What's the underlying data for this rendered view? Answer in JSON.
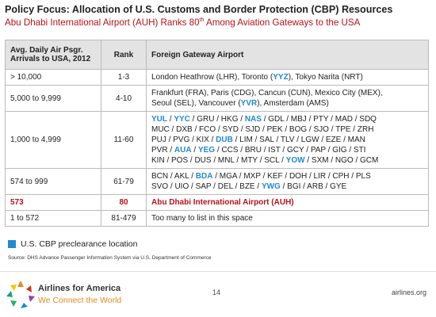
{
  "header": {
    "title": "Policy Focus: Allocation of U.S. Customs and Border Protection (CBP) Resources",
    "subtitle": {
      "lead": "Abu Dhabi International Airport (AUH) Ranks 80",
      "suffix": "th",
      "rest": " Among Aviation Gateways to the USA"
    }
  },
  "table": {
    "columns": [
      "Avg. Daily Air Psgr. Arrivals to USA, 2012",
      "Rank",
      "Foreign Gateway Airport"
    ],
    "rows": [
      {
        "range": "> 10,000",
        "rank": "1-3",
        "highlight": false,
        "airports": [
          {
            "text": "London Heathrow (LHR), Toronto (",
            "preclearance": false
          },
          {
            "text": "YYZ",
            "preclearance": true
          },
          {
            "text": "), Tokyo Narita (NRT)",
            "preclearance": false
          }
        ]
      },
      {
        "range": "5,000 to 9,999",
        "rank": "4-10",
        "highlight": false,
        "airports": [
          {
            "text": "Frankfurt (FRA), Paris (CDG), Cancun (CUN), Mexico City (MEX),\nSeoul (SEL), Vancouver (",
            "preclearance": false
          },
          {
            "text": "YVR",
            "preclearance": true
          },
          {
            "text": "), Amsterdam (AMS)",
            "preclearance": false
          }
        ]
      },
      {
        "range": "1,000 to 4,999",
        "rank": "11-60",
        "highlight": false,
        "airports": [
          {
            "text": "YUL",
            "preclearance": true
          },
          {
            "text": " / ",
            "preclearance": false
          },
          {
            "text": "YYC",
            "preclearance": true
          },
          {
            "text": " / GRU / HKG / ",
            "preclearance": false
          },
          {
            "text": "NAS",
            "preclearance": true
          },
          {
            "text": " / GDL / MBJ / PTY / MAD / SDQ\nMUC / DXB / FCO / SYD / SJD / PEK / BOG / SJO / TPE / ZRH\nPUJ / PVG / KIX / ",
            "preclearance": false
          },
          {
            "text": "DUB",
            "preclearance": true
          },
          {
            "text": " / LIM / SAL / TLV / LGW / EZE / MAN\nPVR / ",
            "preclearance": false
          },
          {
            "text": "AUA",
            "preclearance": true
          },
          {
            "text": " / ",
            "preclearance": false
          },
          {
            "text": "YEG",
            "preclearance": true
          },
          {
            "text": " / CCS / BRU / IST / GCY / PAP / GIG / STI\nKIN / POS / DUS / MNL / MTY / SCL / ",
            "preclearance": false
          },
          {
            "text": "YOW",
            "preclearance": true
          },
          {
            "text": " / SXM / NGO / GCM",
            "preclearance": false
          }
        ]
      },
      {
        "range": "574 to 999",
        "rank": "61-79",
        "highlight": false,
        "airports": [
          {
            "text": "BCN / AKL / ",
            "preclearance": false
          },
          {
            "text": "BDA",
            "preclearance": true
          },
          {
            "text": " / MGA / MXP / KEF / DOH / LIR / CPH / PLS\nSVO / UIO / SAP / DEL / BZE / ",
            "preclearance": false
          },
          {
            "text": "YWG",
            "preclearance": true
          },
          {
            "text": " / BGI / ARB / GYE",
            "preclearance": false
          }
        ]
      },
      {
        "range": "573",
        "rank": "80",
        "highlight": true,
        "airports": [
          {
            "text": "Abu Dhabi International Airport (AUH)",
            "preclearance": false
          }
        ]
      },
      {
        "range": "1 to 572",
        "rank": "81-479",
        "highlight": false,
        "airports": [
          {
            "text": "Too many to list in this space",
            "preclearance": false
          }
        ]
      }
    ]
  },
  "legend": {
    "label": "U.S. CBP preclearance location",
    "color": "#2389cc"
  },
  "source": "Source: DHS Advance Passenger Information System via U.S. Department of Commerce",
  "footer": {
    "brand": "Airlines for America",
    "tagline": "We Connect the World",
    "page": "14",
    "site": "airlines.org"
  }
}
